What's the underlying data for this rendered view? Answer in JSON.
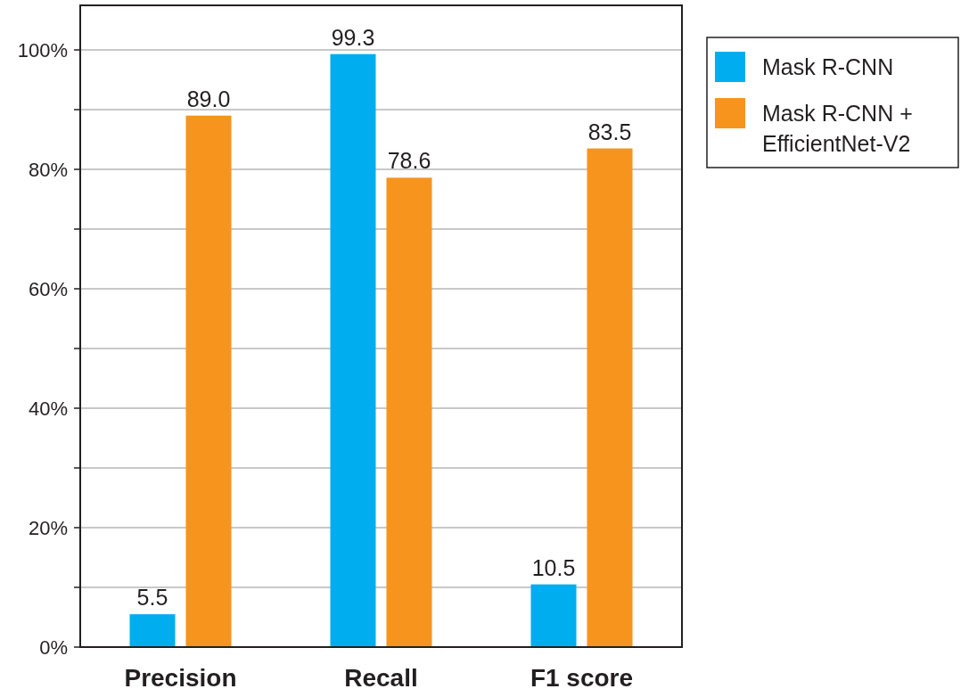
{
  "chart_data": {
    "type": "bar",
    "categories": [
      "Precision",
      "Recall",
      "F1 score"
    ],
    "series": [
      {
        "name": "Mask R-CNN",
        "color": "#00aeef",
        "values": [
          5.5,
          99.3,
          10.5
        ],
        "value_labels": [
          "5.5",
          "99.3",
          "10.5"
        ]
      },
      {
        "name": "Mask R-CNN + EfficientNet-V2",
        "color": "#f7941d",
        "values": [
          89.0,
          78.6,
          83.5
        ],
        "value_labels": [
          "89.0",
          "78.6",
          "83.5"
        ]
      }
    ],
    "ylim": [
      0,
      100
    ],
    "yticks": [
      {
        "value": 0,
        "label": "0%"
      },
      {
        "value": 10,
        "label": null
      },
      {
        "value": 20,
        "label": "20%"
      },
      {
        "value": 30,
        "label": null
      },
      {
        "value": 40,
        "label": "40%"
      },
      {
        "value": 50,
        "label": null
      },
      {
        "value": 60,
        "label": "60%"
      },
      {
        "value": 70,
        "label": null
      },
      {
        "value": 80,
        "label": "80%"
      },
      {
        "value": 90,
        "label": null
      },
      {
        "value": 100,
        "label": "100%"
      }
    ],
    "grid": "y",
    "legend": "top right"
  }
}
